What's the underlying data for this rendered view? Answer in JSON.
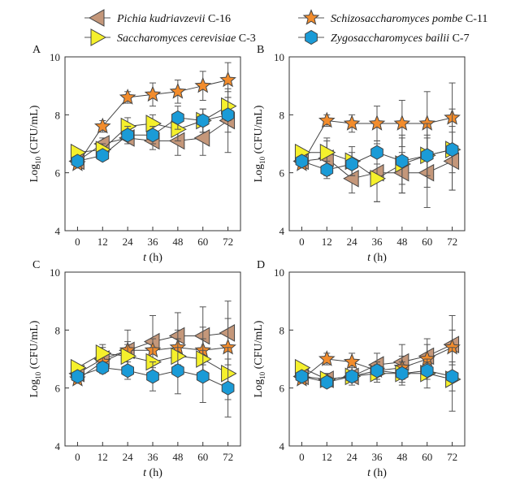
{
  "legend": {
    "entries": [
      {
        "species": "Pichia kudriavzevii",
        "strain": " C-16",
        "marker": "triangle-left",
        "color": "#C4977A"
      },
      {
        "species": "Schizosaccharomyces pombe",
        "strain": " C-11",
        "marker": "star",
        "color": "#F28C2C"
      },
      {
        "species": "Saccharomyces cerevisiae",
        "strain": " C-3",
        "marker": "triangle-right",
        "color": "#F5F02C"
      },
      {
        "species": "Zygosaccharomyces bailii",
        "strain": " C-7",
        "marker": "hexagon",
        "color": "#1A9BD7"
      }
    ]
  },
  "chart_data": [
    {
      "panel": "A",
      "type": "line",
      "x": [
        0,
        12,
        24,
        36,
        48,
        60,
        72
      ],
      "xticklabels": [
        "0",
        "12",
        "24",
        "36",
        "48",
        "60",
        "72"
      ],
      "xlabel_italic": "t",
      "xlabel_rest": " (h)",
      "ylabel_main": "Log",
      "ylabel_sub": "10",
      "ylabel_rest": " (CFU/mL)",
      "ylim": [
        4,
        10
      ],
      "yticks": [
        4,
        6,
        8,
        10
      ],
      "series": [
        {
          "name": "Pichia kudriavzevii C-16",
          "values": [
            6.4,
            7.0,
            7.2,
            7.1,
            7.1,
            7.2,
            7.8
          ],
          "errors": [
            0.1,
            0.2,
            0.2,
            0.3,
            0.5,
            0.6,
            1.1
          ]
        },
        {
          "name": "Schizosaccharomyces pombe C-11",
          "values": [
            6.3,
            7.6,
            8.6,
            8.7,
            8.8,
            9.0,
            9.2
          ],
          "errors": [
            0.1,
            0.2,
            0.2,
            0.4,
            0.4,
            0.5,
            0.6
          ]
        },
        {
          "name": "Saccharomyces cerevisiae C-3",
          "values": [
            6.7,
            6.8,
            7.6,
            7.7,
            7.5,
            7.8,
            8.3
          ],
          "errors": [
            0.1,
            0.2,
            0.3,
            0.3,
            0.4,
            0.4,
            0.5
          ]
        },
        {
          "name": "Zygosaccharomyces bailii C-7",
          "values": [
            6.4,
            6.6,
            7.3,
            7.3,
            7.9,
            7.8,
            8.0
          ],
          "errors": [
            0.1,
            0.1,
            0.3,
            0.3,
            0.4,
            0.4,
            0.6
          ]
        }
      ]
    },
    {
      "panel": "B",
      "type": "line",
      "x": [
        0,
        12,
        24,
        36,
        48,
        60,
        72
      ],
      "xticklabels": [
        "0",
        "12",
        "24",
        "36",
        "48",
        "60",
        "72"
      ],
      "xlabel_italic": "t",
      "xlabel_rest": " (h)",
      "ylabel_main": "Log",
      "ylabel_sub": "10",
      "ylabel_rest": " (CFU/mL)",
      "ylim": [
        4,
        10
      ],
      "yticks": [
        4,
        6,
        8,
        10
      ],
      "series": [
        {
          "name": "Pichia kudriavzevii C-16",
          "values": [
            6.4,
            6.5,
            5.8,
            6.0,
            6.0,
            6.0,
            6.4
          ],
          "errors": [
            0.1,
            0.6,
            0.5,
            1.0,
            0.7,
            1.2,
            1.0
          ]
        },
        {
          "name": "Schizosaccharomyces pombe C-11",
          "values": [
            6.3,
            7.8,
            7.7,
            7.7,
            7.7,
            7.7,
            7.9
          ],
          "errors": [
            0.1,
            0.2,
            0.3,
            0.6,
            0.8,
            1.1,
            1.2
          ]
        },
        {
          "name": "Saccharomyces cerevisiae C-3",
          "values": [
            6.7,
            6.7,
            6.4,
            5.8,
            6.3,
            6.6,
            6.8
          ],
          "errors": [
            0.1,
            0.5,
            0.5,
            0.8,
            1.0,
            1.1,
            1.4
          ]
        },
        {
          "name": "Zygosaccharomyces bailii C-7",
          "values": [
            6.4,
            6.1,
            6.3,
            6.7,
            6.4,
            6.6,
            6.8
          ],
          "errors": [
            0.1,
            0.3,
            0.4,
            0.4,
            0.8,
            0.7,
            0.8
          ]
        }
      ]
    },
    {
      "panel": "C",
      "type": "line",
      "x": [
        0,
        12,
        24,
        36,
        48,
        60,
        72
      ],
      "xticklabels": [
        "0",
        "12",
        "24",
        "36",
        "48",
        "60",
        "72"
      ],
      "xlabel_italic": "t",
      "xlabel_rest": " (h)",
      "ylabel_main": "Log",
      "ylabel_sub": "10",
      "ylabel_rest": " (CFU/mL)",
      "ylim": [
        4,
        10
      ],
      "yticks": [
        4,
        6,
        8,
        10
      ],
      "series": [
        {
          "name": "Pichia kudriavzevii C-16",
          "values": [
            6.5,
            7.0,
            7.3,
            7.6,
            7.8,
            7.8,
            7.9
          ],
          "errors": [
            0.1,
            0.4,
            0.7,
            0.9,
            0.8,
            1.0,
            1.1
          ]
        },
        {
          "name": "Schizosaccharomyces pombe C-11",
          "values": [
            6.3,
            6.9,
            7.3,
            7.3,
            7.4,
            7.3,
            7.4
          ],
          "errors": [
            0.1,
            0.2,
            0.3,
            0.4,
            0.6,
            0.8,
            1.0
          ]
        },
        {
          "name": "Saccharomyces cerevisiae C-3",
          "values": [
            6.7,
            7.2,
            7.1,
            6.9,
            7.1,
            7.0,
            6.5
          ],
          "errors": [
            0.1,
            0.3,
            0.4,
            0.5,
            0.6,
            0.7,
            0.9
          ]
        },
        {
          "name": "Zygosaccharomyces bailii C-7",
          "values": [
            6.4,
            6.7,
            6.6,
            6.4,
            6.6,
            6.4,
            6.0
          ],
          "errors": [
            0.1,
            0.2,
            0.3,
            0.5,
            0.8,
            0.9,
            1.0
          ]
        }
      ]
    },
    {
      "panel": "D",
      "type": "line",
      "x": [
        0,
        12,
        24,
        36,
        48,
        60,
        72
      ],
      "xticklabels": [
        "0",
        "12",
        "24",
        "36",
        "48",
        "60",
        "72"
      ],
      "xlabel_italic": "t",
      "xlabel_rest": " (h)",
      "ylabel_main": "Log",
      "ylabel_sub": "10",
      "ylabel_rest": " (CFU/mL)",
      "ylim": [
        4,
        10
      ],
      "yticks": [
        4,
        6,
        8,
        10
      ],
      "series": [
        {
          "name": "Pichia kudriavzevii C-16",
          "values": [
            6.4,
            6.3,
            6.4,
            6.8,
            6.9,
            7.1,
            7.5
          ],
          "errors": [
            0.1,
            0.2,
            0.3,
            0.4,
            0.6,
            0.6,
            1.0
          ]
        },
        {
          "name": "Schizosaccharomyces pombe C-11",
          "values": [
            6.3,
            7.0,
            6.9,
            6.6,
            6.7,
            7.0,
            7.4
          ],
          "errors": [
            0.1,
            0.2,
            0.3,
            0.3,
            0.4,
            0.5,
            0.6
          ]
        },
        {
          "name": "Saccharomyces cerevisiae C-3",
          "values": [
            6.7,
            6.3,
            6.4,
            6.5,
            6.5,
            6.5,
            6.3
          ],
          "errors": [
            0.1,
            0.2,
            0.2,
            0.3,
            0.4,
            0.5,
            1.1
          ]
        },
        {
          "name": "Zygosaccharomyces bailii C-7",
          "values": [
            6.4,
            6.2,
            6.4,
            6.6,
            6.5,
            6.6,
            6.4
          ],
          "errors": [
            0.1,
            0.1,
            0.2,
            0.3,
            0.3,
            0.3,
            0.5
          ]
        }
      ]
    }
  ]
}
